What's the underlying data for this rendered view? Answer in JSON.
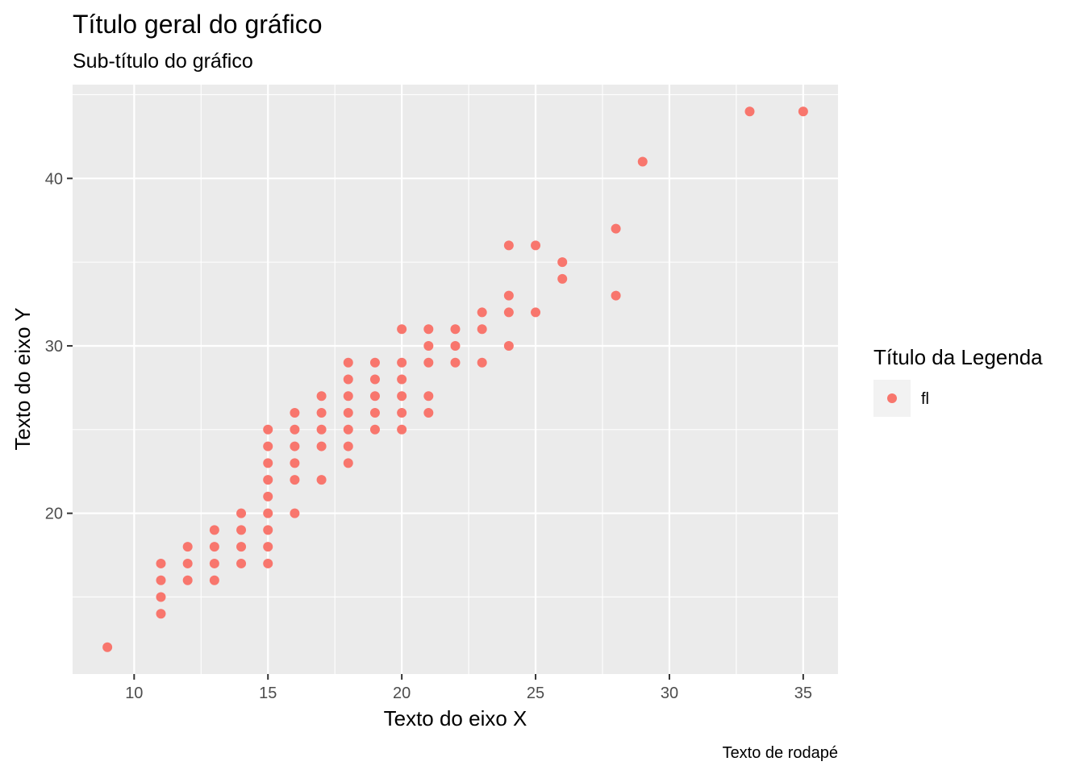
{
  "chart_data": {
    "type": "scatter",
    "title": "Título geral do gráfico",
    "subtitle": "Sub-título do gráfico",
    "xlabel": "Texto do eixo X",
    "ylabel": "Texto do eixo Y",
    "caption": "Texto de rodapé",
    "xlim": [
      7.7,
      36.3
    ],
    "ylim": [
      10.4,
      45.6
    ],
    "x_ticks": [
      10,
      15,
      20,
      25,
      30,
      35
    ],
    "y_ticks": [
      20,
      30,
      40
    ],
    "grid": true,
    "legend": {
      "title": "Título da Legenda",
      "position": "right",
      "entries": [
        "fl"
      ]
    },
    "series": [
      {
        "name": "fl",
        "color": "#F8766D",
        "points": [
          [
            9,
            12
          ],
          [
            11,
            14
          ],
          [
            11,
            15
          ],
          [
            11,
            16
          ],
          [
            11,
            17
          ],
          [
            12,
            16
          ],
          [
            12,
            17
          ],
          [
            12,
            18
          ],
          [
            13,
            16
          ],
          [
            13,
            17
          ],
          [
            13,
            18
          ],
          [
            13,
            19
          ],
          [
            14,
            17
          ],
          [
            14,
            18
          ],
          [
            14,
            19
          ],
          [
            14,
            20
          ],
          [
            15,
            17
          ],
          [
            15,
            18
          ],
          [
            15,
            19
          ],
          [
            15,
            20
          ],
          [
            15,
            21
          ],
          [
            15,
            22
          ],
          [
            15,
            23
          ],
          [
            15,
            24
          ],
          [
            15,
            25
          ],
          [
            16,
            20
          ],
          [
            16,
            22
          ],
          [
            16,
            23
          ],
          [
            16,
            24
          ],
          [
            16,
            25
          ],
          [
            16,
            26
          ],
          [
            17,
            22
          ],
          [
            17,
            24
          ],
          [
            17,
            25
          ],
          [
            17,
            26
          ],
          [
            17,
            27
          ],
          [
            18,
            23
          ],
          [
            18,
            24
          ],
          [
            18,
            25
          ],
          [
            18,
            26
          ],
          [
            18,
            27
          ],
          [
            18,
            28
          ],
          [
            18,
            29
          ],
          [
            19,
            25
          ],
          [
            19,
            26
          ],
          [
            19,
            27
          ],
          [
            19,
            28
          ],
          [
            19,
            29
          ],
          [
            20,
            25
          ],
          [
            20,
            26
          ],
          [
            20,
            27
          ],
          [
            20,
            28
          ],
          [
            20,
            29
          ],
          [
            20,
            31
          ],
          [
            21,
            26
          ],
          [
            21,
            27
          ],
          [
            21,
            29
          ],
          [
            21,
            30
          ],
          [
            21,
            31
          ],
          [
            22,
            29
          ],
          [
            22,
            30
          ],
          [
            22,
            31
          ],
          [
            23,
            29
          ],
          [
            23,
            31
          ],
          [
            23,
            32
          ],
          [
            24,
            30
          ],
          [
            24,
            32
          ],
          [
            24,
            33
          ],
          [
            24,
            36
          ],
          [
            25,
            32
          ],
          [
            25,
            36
          ],
          [
            26,
            34
          ],
          [
            26,
            35
          ],
          [
            28,
            33
          ],
          [
            28,
            37
          ],
          [
            29,
            41
          ],
          [
            33,
            44
          ],
          [
            35,
            44
          ]
        ]
      }
    ]
  },
  "colors": {
    "panel_background": "#EBEBEB",
    "grid_line": "#FFFFFF",
    "legend_key_background": "#F2F2F2",
    "point": "#F8766D"
  }
}
